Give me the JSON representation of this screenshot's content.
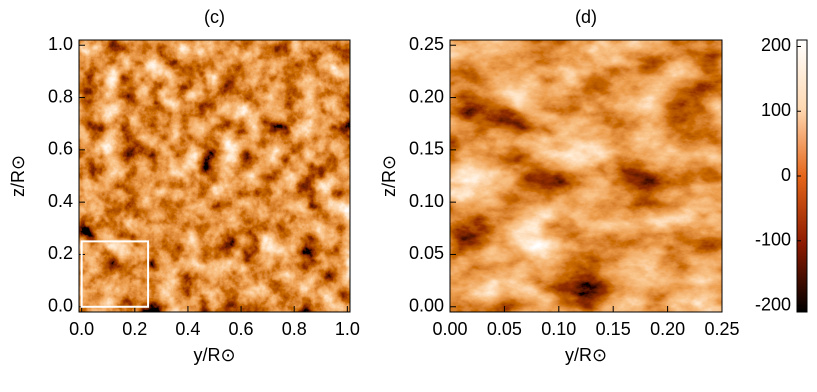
{
  "chart_data": [
    {
      "type": "heatmap",
      "title": "(c)",
      "xlabel": "y/R⊙",
      "ylabel": "z/R⊙",
      "xlim": [
        -0.01,
        1.01
      ],
      "ylim": [
        -0.02,
        1.02
      ],
      "xticks": [
        {
          "value": 0,
          "label": "0.0"
        },
        0.2,
        0.4,
        0.6,
        0.8,
        {
          "value": 1,
          "label": "1.0"
        }
      ],
      "yticks": [
        {
          "value": 0,
          "label": "0.0"
        },
        0.2,
        0.4,
        0.6,
        0.8,
        {
          "value": 1,
          "label": "1.0"
        }
      ],
      "highlight": {
        "x": [
          0,
          0.25
        ],
        "y": [
          0,
          0.25
        ],
        "color": "#ffffff"
      }
    },
    {
      "type": "heatmap",
      "title": "(d)",
      "xlabel": "y/R⊙",
      "ylabel": "z/R⊙",
      "xlim": [
        0,
        0.25
      ],
      "ylim": [
        -0.005,
        0.255
      ],
      "xticks": [
        {
          "value": 0,
          "label": "0.00"
        },
        0.05,
        {
          "value": 0.1,
          "label": "0.10"
        },
        0.15,
        {
          "value": 0.2,
          "label": "0.20"
        },
        0.25
      ],
      "yticks": [
        {
          "value": 0,
          "label": "0.00"
        },
        0.05,
        {
          "value": 0.1,
          "label": "0.10"
        },
        0.15,
        {
          "value": 0.2,
          "label": "0.20"
        },
        0.25
      ],
      "colorbar": {
        "lim": [
          -210,
          210
        ],
        "ticks": [
          -200,
          -100,
          0,
          100,
          200
        ],
        "colors": [
          "#000000",
          "#8c1a00",
          "#e5661a",
          "#ffd9b3",
          "#ffffff"
        ]
      }
    }
  ]
}
